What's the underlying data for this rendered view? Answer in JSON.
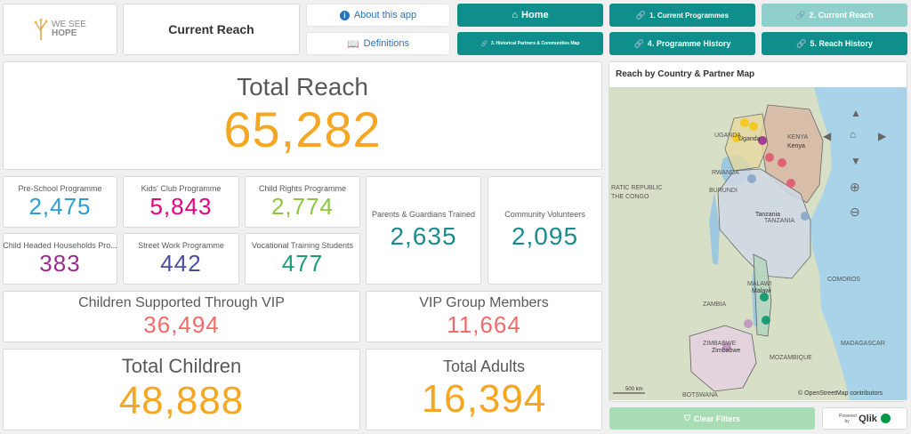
{
  "logo": {
    "text_line1": "WE SEE",
    "text_line2": "HOPE"
  },
  "page_title": "Current Reach",
  "nav": {
    "about": "About this app",
    "definitions": "Definitions",
    "home": "Home",
    "current_programmes": "1. Current Programmes",
    "current_reach": "2. Current Reach",
    "historical_map": "3. Historical Partners & Communities Map",
    "programme_history": "4. Programme History",
    "reach_history": "5. Reach History"
  },
  "kpis": {
    "total_reach": {
      "label": "Total Reach",
      "value": "65,282"
    },
    "pre_school": {
      "label": "Pre-School Programme",
      "value": "2,475"
    },
    "kids_club": {
      "label": "Kids' Club Programme",
      "value": "5,843"
    },
    "child_rights": {
      "label": "Child Rights Programme",
      "value": "2,774"
    },
    "child_headed": {
      "label": "Child Headed Households Pro...",
      "value": "383"
    },
    "street_work": {
      "label": "Street Work Programme",
      "value": "442"
    },
    "vocational": {
      "label": "Vocational Training Students",
      "value": "477"
    },
    "parents": {
      "label": "Parents & Guardians Trained",
      "value": "2,635"
    },
    "volunteers": {
      "label": "Community Volunteers",
      "value": "2,095"
    },
    "vip_children": {
      "label": "Children Supported Through VIP",
      "value": "36,494"
    },
    "vip_members": {
      "label": "VIP Group Members",
      "value": "11,664"
    },
    "total_children": {
      "label": "Total Children",
      "value": "48,888"
    },
    "total_adults": {
      "label": "Total Adults",
      "value": "16,394"
    }
  },
  "map": {
    "title": "Reach by Country & Partner Map",
    "labels": {
      "uganda": "UGANDA",
      "uganda_city": "Uganda",
      "kenya": "KENYA",
      "kenya_city": "Kenya",
      "rwanda": "RWANDA",
      "burundi": "BURUNDI",
      "drc1": "RATIC REPUBLIC",
      "drc2": "THE CONGO",
      "tanzania_city": "Tanzania",
      "tanzania": "TANZANIA",
      "malawi": "MALAWI",
      "malawi_city": "Malawi",
      "zambia": "ZAMBIA",
      "comoros": "COMOROS",
      "madagascar": "MADAGASCAR",
      "zimbabwe": "ZIMBABWE",
      "zimbabwe_city": "Zimbabwe",
      "mozambique": "MOZAMBIQUE",
      "botswana": "BOTSWANA"
    },
    "scale": "500 km",
    "attribution": "© OpenStreetMap contributors"
  },
  "footer": {
    "clear_filters": "Clear Filters",
    "powered_by": "Powered by",
    "brand": "Qlik"
  },
  "colors": {
    "teal": "#0f8f8c",
    "orange": "#f5a623",
    "blue": "#2a9fd6",
    "pink": "#e6007e",
    "lime": "#8cc63f",
    "purple": "#9b2d8f",
    "indigo": "#4a4fa3",
    "green": "#1b9c75",
    "darkteal": "#1b8c8c",
    "salmon": "#f06b6b"
  }
}
